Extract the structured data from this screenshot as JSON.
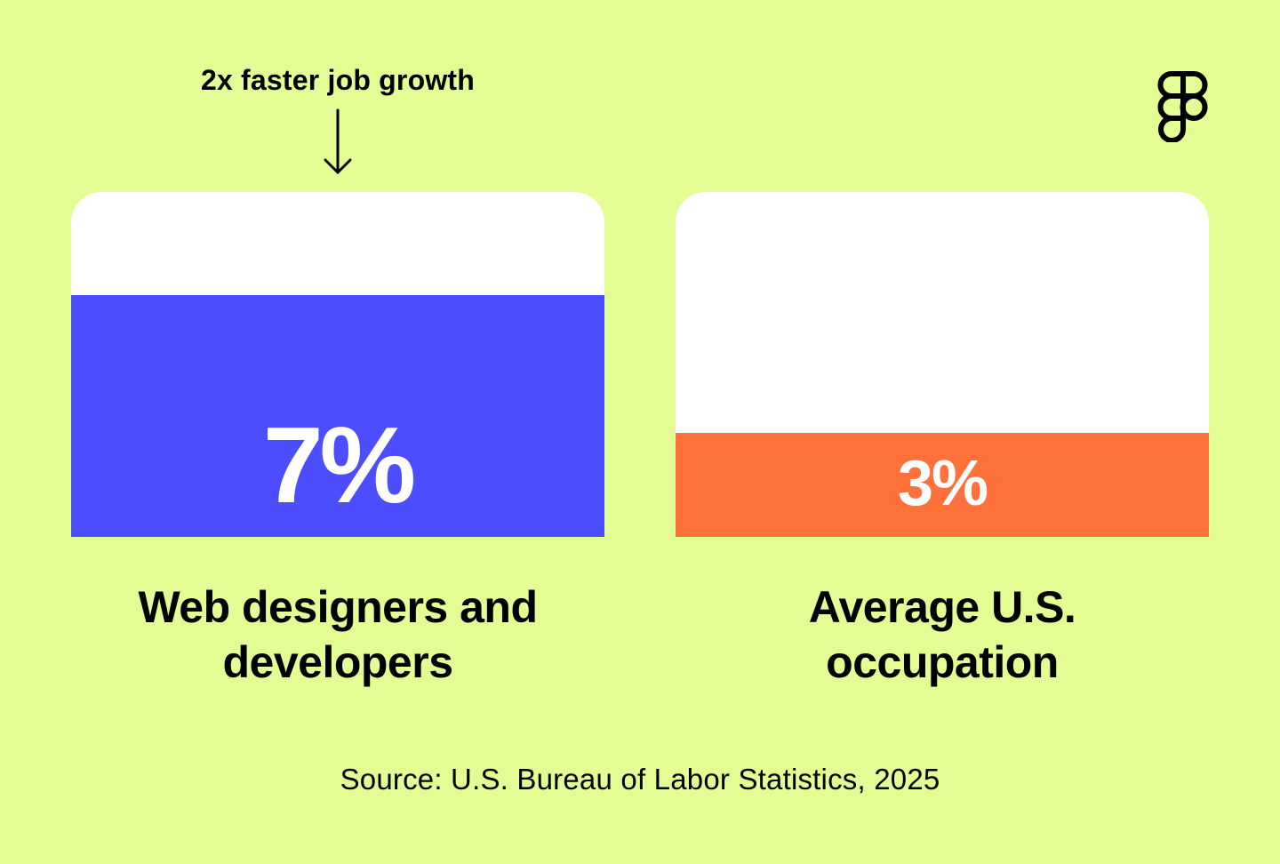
{
  "chart_data": {
    "type": "bar",
    "annotation": "2x faster job growth",
    "categories": [
      {
        "label_lines": [
          "Web designers and",
          "developers"
        ],
        "value": 7,
        "value_label": "7%",
        "color": "#4B4DFF"
      },
      {
        "label_lines": [
          "Average U.S.",
          "occupation"
        ],
        "value": 3,
        "value_label": "3%",
        "color": "#FF713A"
      }
    ],
    "value_unit": "%",
    "source": "Source: U.S. Bureau of Labor Statistics, 2025"
  },
  "logo": {
    "name": "figma-logo-icon"
  },
  "colors": {
    "background": "#E4FC94",
    "card": "#FFFFFF",
    "text": "#000000"
  }
}
